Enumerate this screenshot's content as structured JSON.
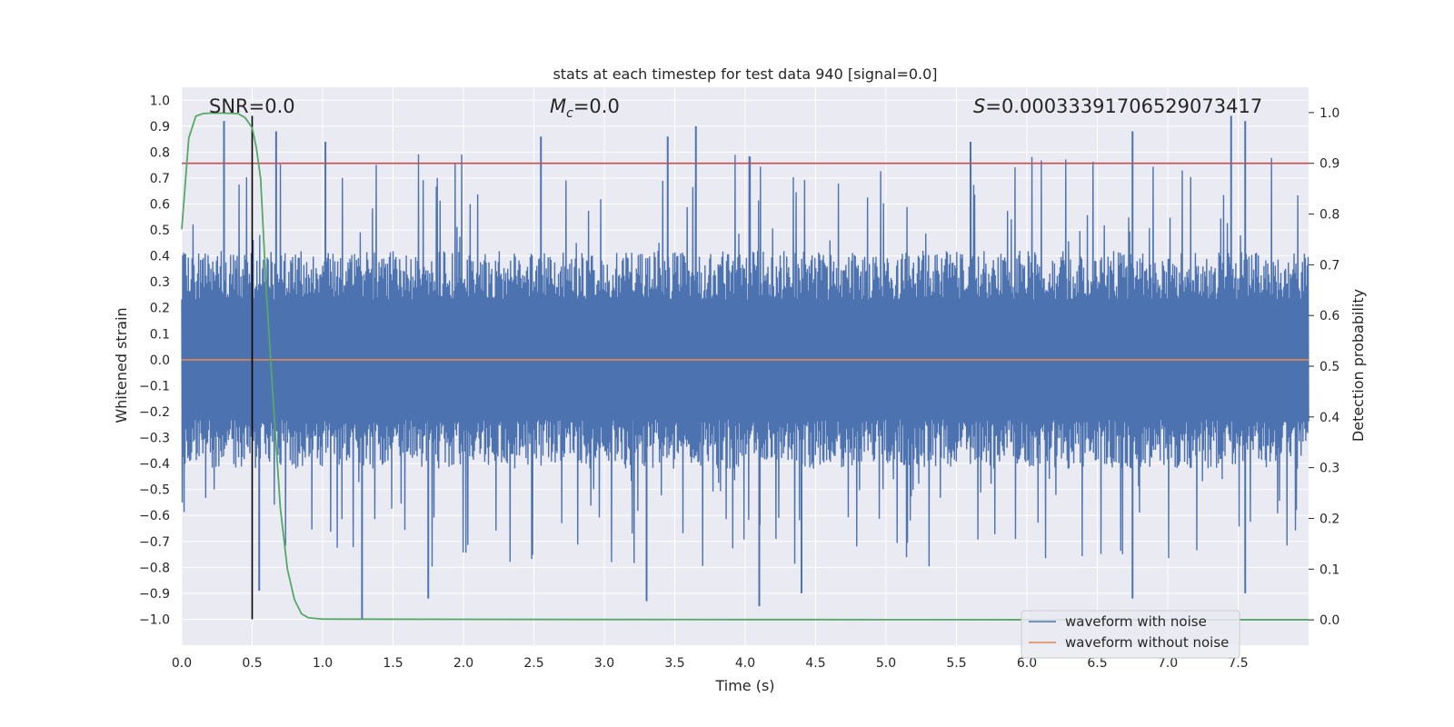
{
  "chart_data": {
    "type": "line",
    "title": "stats at each timestep for test data 940 [signal=0.0]",
    "xlabel": "Time (s)",
    "ylabel": "Whitened strain",
    "y2label": "Detection probability",
    "xlim": [
      0.0,
      8.0
    ],
    "ylim": [
      -1.1,
      1.05
    ],
    "y2lim": [
      -0.05,
      1.05
    ],
    "x_ticks": [
      "0.0",
      "0.5",
      "1.0",
      "1.5",
      "2.0",
      "2.5",
      "3.0",
      "3.5",
      "4.0",
      "4.5",
      "5.0",
      "5.5",
      "6.0",
      "6.5",
      "7.0",
      "7.5"
    ],
    "y_ticks": [
      "1.0",
      "0.9",
      "0.8",
      "0.7",
      "0.6",
      "0.5",
      "0.4",
      "0.3",
      "0.2",
      "0.1",
      "0.0",
      "-0.1",
      "-0.2",
      "-0.3",
      "-0.4",
      "-0.5",
      "-0.6",
      "-0.7",
      "-0.8",
      "-0.9",
      "-1.0"
    ],
    "y2_ticks": [
      "1.0",
      "0.9",
      "0.8",
      "0.7",
      "0.6",
      "0.5",
      "0.4",
      "0.3",
      "0.2",
      "0.1",
      "0.0"
    ],
    "grid": true,
    "legend_position": "lower-right",
    "annotations": {
      "snr": "SNR=0.0",
      "mc": "=0.0",
      "mc_symbol": "M",
      "mc_sub": "c",
      "s": "=0.0003339170652907341​7",
      "s_symbol": "S"
    },
    "series": [
      {
        "name": "waveform with noise",
        "color": "#4c72b0",
        "description_values": {
          "typical_envelope": [
            -0.42,
            0.42
          ],
          "peaks": [
            [
              0.3,
              0.92
            ],
            [
              0.67,
              0.88
            ],
            [
              1.02,
              0.84
            ],
            [
              2.55,
              0.86
            ],
            [
              3.45,
              0.86
            ],
            [
              3.65,
              0.9
            ],
            [
              5.6,
              0.84
            ],
            [
              6.75,
              0.88
            ],
            [
              7.45,
              0.94
            ],
            [
              7.55,
              0.92
            ]
          ],
          "troughs": [
            [
              0.55,
              -0.89
            ],
            [
              1.28,
              -1.0
            ],
            [
              1.75,
              -0.92
            ],
            [
              3.3,
              -0.93
            ],
            [
              4.1,
              -0.95
            ],
            [
              4.4,
              -0.9
            ],
            [
              6.75,
              -0.92
            ],
            [
              7.55,
              -0.9
            ]
          ]
        }
      },
      {
        "name": "waveform without noise",
        "color": "#dd8452",
        "x": [
          0.0,
          8.0
        ],
        "y": [
          0.0,
          0.0
        ]
      },
      {
        "name": "",
        "color": "#55a868",
        "axis": "right",
        "x": [
          0.0,
          0.05,
          0.1,
          0.15,
          0.2,
          0.3,
          0.4,
          0.45,
          0.5,
          0.53,
          0.56,
          0.6,
          0.65,
          0.7,
          0.75,
          0.8,
          0.85,
          0.9,
          1.0,
          2.0,
          3.0,
          4.0,
          5.0,
          6.0,
          7.0,
          8.0
        ],
        "y": [
          0.77,
          0.95,
          0.993,
          0.998,
          0.999,
          0.999,
          0.998,
          0.99,
          0.97,
          0.93,
          0.87,
          0.65,
          0.43,
          0.22,
          0.1,
          0.04,
          0.012,
          0.004,
          0.0015,
          0.001,
          0.0007,
          0.0005,
          0.0004,
          0.0003,
          0.0003,
          0.0003
        ]
      }
    ],
    "threshold_line": {
      "color": "#c44e52",
      "value_right_axis": 0.9
    },
    "marker_line": {
      "color": "#000000",
      "x": 0.5,
      "y_range": [
        -1.0,
        0.94
      ]
    }
  }
}
